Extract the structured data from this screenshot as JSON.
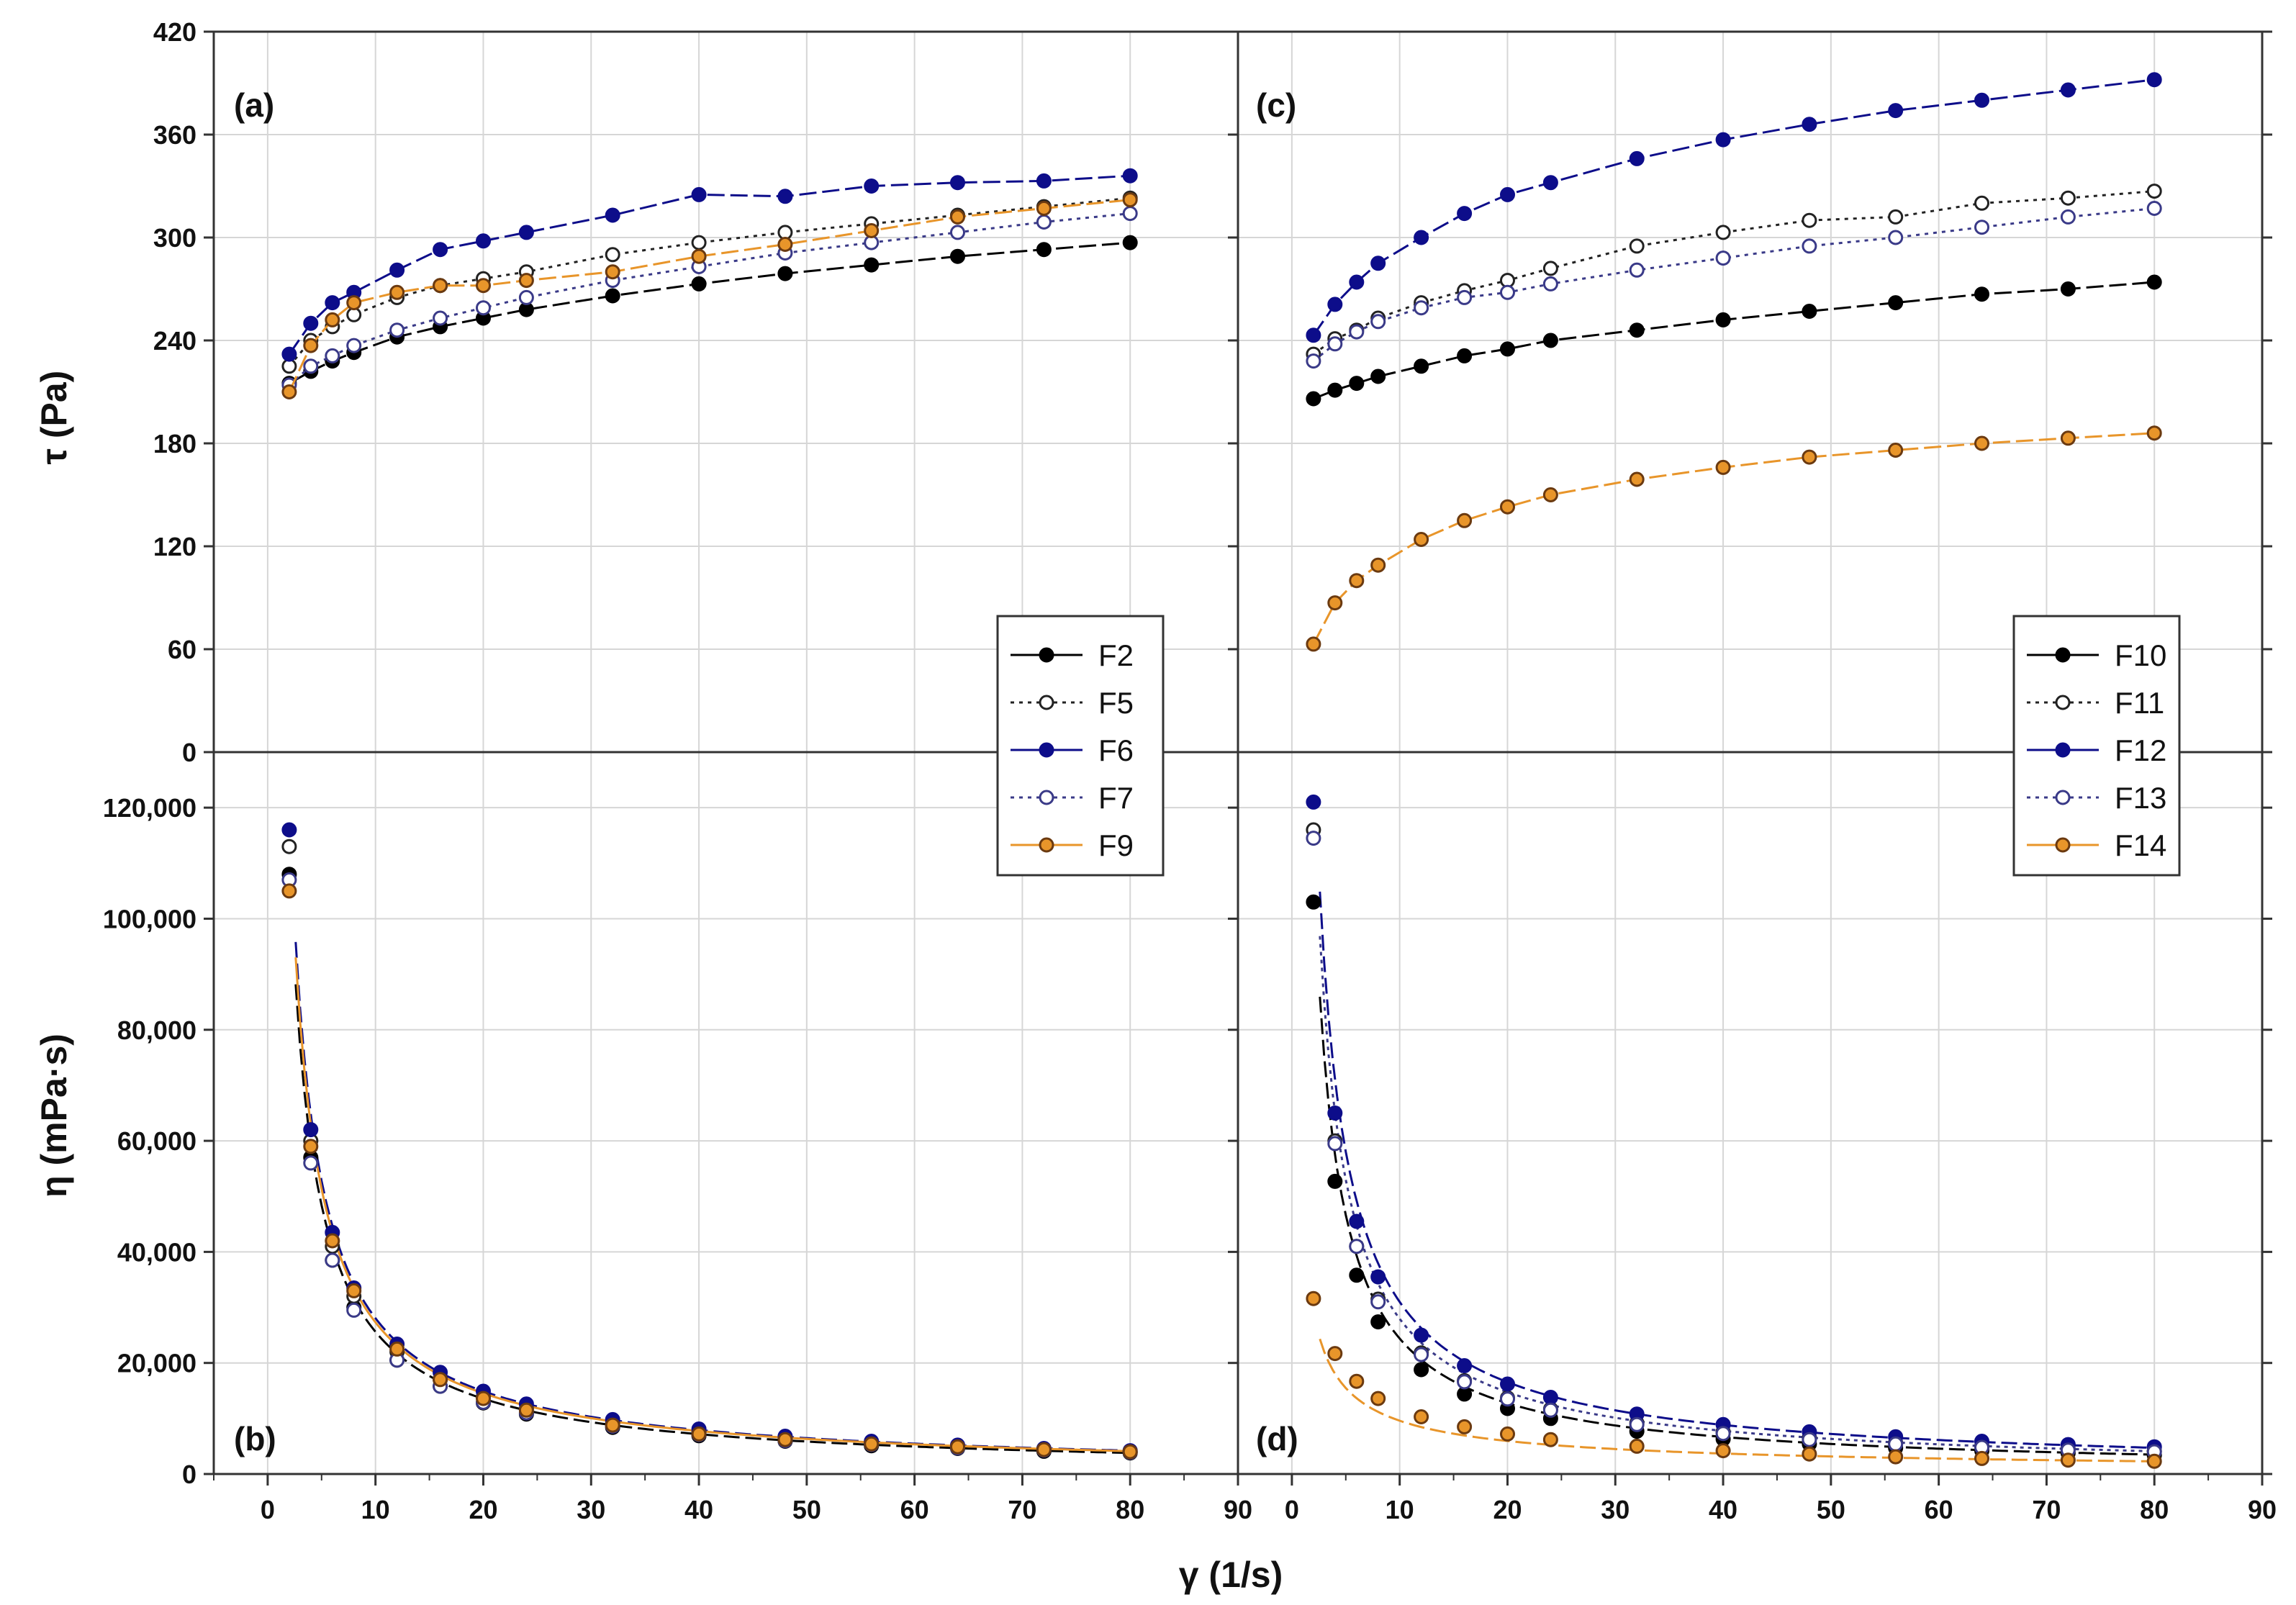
{
  "chart_data": {
    "type": "scatter",
    "xlabel": "γ (1/s)",
    "xlim": [
      -5,
      90
    ],
    "xticks": [
      0,
      10,
      20,
      30,
      40,
      50,
      60,
      70,
      80,
      90
    ],
    "x": [
      2,
      4,
      6,
      8,
      12,
      16,
      20,
      24,
      32,
      40,
      48,
      56,
      64,
      72,
      80
    ],
    "colors": {
      "F2": "#000000",
      "F5": "#222222",
      "F6": "#0d0d8a",
      "F7": "#3a3a88",
      "F9": "#e8952a",
      "F10": "#000000",
      "F11": "#222222",
      "F12": "#0d0d8a",
      "F13": "#3a3a88",
      "F14": "#e8952a"
    },
    "panels": [
      {
        "label": "(a)",
        "ylabel": "τ (Pa)",
        "ylim": [
          0,
          420
        ],
        "yticks": [
          0,
          60,
          120,
          180,
          240,
          300,
          360,
          420
        ],
        "yticklabels": [
          "0",
          "60",
          "120",
          "180",
          "240",
          "300",
          "360",
          "420"
        ],
        "legend": "left",
        "series": [
          {
            "name": "F2",
            "marker": "filled",
            "line": "dash",
            "values": [
              215,
              222,
              228,
              233,
              242,
              248,
              253,
              258,
              266,
              273,
              279,
              284,
              289,
              293,
              297
            ]
          },
          {
            "name": "F5",
            "marker": "open",
            "line": "dot",
            "values": [
              225,
              240,
              248,
              255,
              265,
              272,
              276,
              280,
              290,
              297,
              303,
              308,
              313,
              318,
              323
            ]
          },
          {
            "name": "F6",
            "marker": "filled",
            "line": "dash",
            "values": [
              232,
              250,
              262,
              268,
              281,
              293,
              298,
              303,
              313,
              325,
              324,
              330,
              332,
              333,
              336
            ]
          },
          {
            "name": "F7",
            "marker": "open",
            "line": "dot",
            "values": [
              214,
              225,
              231,
              237,
              246,
              253,
              259,
              265,
              275,
              283,
              291,
              297,
              303,
              309,
              314
            ]
          },
          {
            "name": "F9",
            "marker": "orange",
            "line": "dash",
            "values": [
              210,
              237,
              252,
              262,
              268,
              272,
              272,
              275,
              280,
              289,
              296,
              304,
              312,
              317,
              322
            ]
          }
        ]
      },
      {
        "label": "(b)",
        "ylabel": "η (mPa·s)",
        "ylim": [
          0,
          130000
        ],
        "yticks": [
          0,
          20000,
          40000,
          60000,
          80000,
          100000,
          120000
        ],
        "yticklabels": [
          "0",
          "20,000",
          "40,000",
          "60,000",
          "80,000",
          "100,000",
          "120,000"
        ],
        "series": [
          {
            "name": "F2",
            "marker": "filled",
            "line": "dash",
            "values": [
              108000,
              57000,
              38500,
              30000,
              20500,
              15800,
              12800,
              10800,
              8400,
              6900,
              5900,
              5100,
              4600,
              4100,
              3800
            ]
          },
          {
            "name": "F5",
            "marker": "open",
            "line": "dot",
            "values": [
              113000,
              60000,
              41000,
              32000,
              22000,
              17000,
              13800,
              11700,
              9100,
              7500,
              6400,
              5500,
              4900,
              4400,
              4000
            ]
          },
          {
            "name": "F6",
            "marker": "filled",
            "line": "dash",
            "values": [
              116000,
              62000,
              43500,
              33500,
              23400,
              18300,
              14900,
              12600,
              9800,
              8100,
              6800,
              5900,
              5200,
              4600,
              4200
            ]
          },
          {
            "name": "F7",
            "marker": "open",
            "line": "dot",
            "values": [
              107000,
              56000,
              38500,
              29500,
              20500,
              15800,
              12900,
              11000,
              8600,
              7100,
              6000,
              5300,
              4700,
              4300,
              3900
            ]
          },
          {
            "name": "F9",
            "marker": "orange",
            "line": "dash",
            "values": [
              105000,
              59000,
              42000,
              33000,
              22500,
              17000,
              13600,
              11500,
              8800,
              7200,
              6200,
              5400,
              4900,
              4400,
              4000
            ]
          }
        ],
        "fit_curves": [
          {
            "color": "#000000",
            "k": 212000,
            "p": 0.918,
            "dash": "22 8"
          },
          {
            "color": "#0d0d8a",
            "k": 229000,
            "p": 0.912,
            "dash": "22 8"
          },
          {
            "color": "#e8952a",
            "k": 222000,
            "p": 0.91,
            "dash": ""
          }
        ]
      },
      {
        "label": "(c)",
        "ylabel": "τ (Pa)",
        "ylim": [
          0,
          420
        ],
        "yticks": [
          0,
          60,
          120,
          180,
          240,
          300,
          360,
          420
        ],
        "legend": "right",
        "series": [
          {
            "name": "F10",
            "marker": "filled",
            "line": "dash",
            "values": [
              206,
              211,
              215,
              219,
              225,
              231,
              235,
              240,
              246,
              252,
              257,
              262,
              267,
              270,
              274
            ]
          },
          {
            "name": "F11",
            "marker": "open",
            "line": "dot",
            "values": [
              232,
              241,
              246,
              253,
              262,
              269,
              275,
              282,
              295,
              303,
              310,
              312,
              320,
              323,
              327
            ]
          },
          {
            "name": "F12",
            "marker": "filled",
            "line": "dash",
            "values": [
              243,
              261,
              274,
              285,
              300,
              314,
              325,
              332,
              346,
              357,
              366,
              374,
              380,
              386,
              392
            ]
          },
          {
            "name": "F13",
            "marker": "open",
            "line": "dot",
            "values": [
              228,
              238,
              245,
              251,
              259,
              265,
              268,
              273,
              281,
              288,
              295,
              300,
              306,
              312,
              317
            ]
          },
          {
            "name": "F14",
            "marker": "orange",
            "line": "dash",
            "values": [
              63,
              87,
              100,
              109,
              124,
              135,
              143,
              150,
              159,
              166,
              172,
              176,
              180,
              183,
              186
            ]
          }
        ]
      },
      {
        "label": "(d)",
        "ylabel": "η (mPa·s)",
        "ylim": [
          0,
          130000
        ],
        "yticks": [
          0,
          20000,
          40000,
          60000,
          80000,
          100000,
          120000
        ],
        "series": [
          {
            "name": "F10",
            "marker": "filled",
            "line": "dash",
            "values": [
              103000,
              52700,
              35800,
              27400,
              18800,
              14400,
              11800,
              10000,
              7700,
              6300,
              5400,
              4700,
              4200,
              3800,
              3400
            ]
          },
          {
            "name": "F11",
            "marker": "open",
            "line": "dot",
            "values": [
              116000,
              60000,
              41000,
              31500,
              21800,
              16800,
              13700,
              11700,
              9200,
              7600,
              6500,
              5600,
              5000,
              4500,
              4100
            ]
          },
          {
            "name": "F12",
            "marker": "filled",
            "line": "dash",
            "values": [
              121000,
              65000,
              45500,
              35500,
              25000,
              19500,
              16200,
              13800,
              10800,
              8900,
              7600,
              6700,
              5900,
              5300,
              4900
            ]
          },
          {
            "name": "F13",
            "marker": "open",
            "line": "dot",
            "values": [
              114500,
              59500,
              41000,
              31000,
              21500,
              16600,
              13500,
              11500,
              8900,
              7300,
              6200,
              5400,
              4800,
              4300,
              4000
            ]
          },
          {
            "name": "F14",
            "marker": "orange",
            "line": "dash",
            "values": [
              31600,
              21700,
              16700,
              13600,
              10300,
              8500,
              7200,
              6200,
              5000,
              4200,
              3600,
              3100,
              2800,
              2500,
              2300
            ]
          }
        ],
        "fit_curves": [
          {
            "color": "#000000",
            "k": 210000,
            "p": 0.935,
            "dash": "22 8"
          },
          {
            "color": "#3a3a88",
            "k": 234000,
            "p": 0.923,
            "dash": "5 6"
          },
          {
            "color": "#0d0d8a",
            "k": 249000,
            "p": 0.905,
            "dash": "22 8"
          },
          {
            "color": "#e8952a",
            "k": 47000,
            "p": 0.69,
            "dash": "22 8"
          }
        ]
      }
    ]
  }
}
